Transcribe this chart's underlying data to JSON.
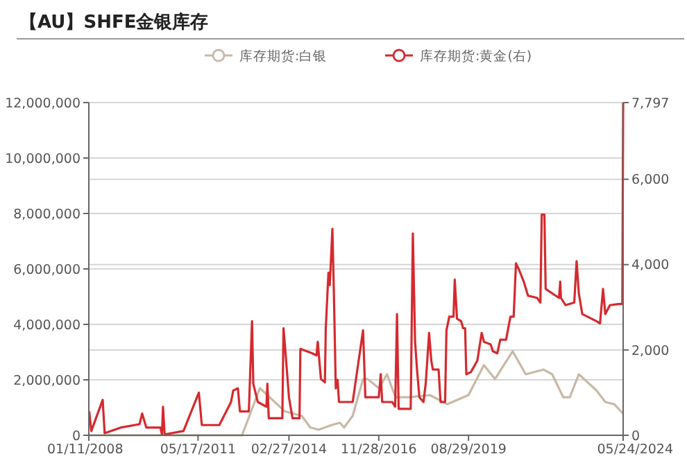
{
  "chart_data": {
    "type": "line",
    "title": "【AU】SHFE金银库存",
    "legend": "top",
    "grid": "y",
    "marker": "none",
    "xlim": [
      "2008-01-11",
      "2024-05-24"
    ],
    "xticks": [
      {
        "value": "2008-01-11",
        "label": "01/11/2008"
      },
      {
        "value": "2011-05-17",
        "label": "05/17/2011"
      },
      {
        "value": "2014-02-27",
        "label": "02/27/2014"
      },
      {
        "value": "2016-11-28",
        "label": "11/28/2016"
      },
      {
        "value": "2019-08-29",
        "label": "08/29/2019"
      },
      {
        "value": "2024-05-24",
        "label": "05/24/2024"
      }
    ],
    "ylim": [
      0,
      12000000
    ],
    "yticks": [
      0,
      {
        "value": 2000000,
        "label": "2,000,000"
      },
      {
        "value": 4000000,
        "label": "4,000,000"
      },
      {
        "value": 6000000,
        "label": "6,000,000"
      },
      {
        "value": 8000000,
        "label": "8,000,000"
      },
      {
        "value": 10000000,
        "label": "10,000,000"
      },
      {
        "value": 12000000,
        "label": "12,000,000"
      }
    ],
    "y2lim": [
      0,
      7797
    ],
    "y2ticks": [
      0,
      {
        "value": 2000,
        "label": "2,000"
      },
      {
        "value": 4000,
        "label": "4,000"
      },
      {
        "value": 6000,
        "label": "6,000"
      },
      {
        "value": 7797,
        "label": "7,797"
      }
    ],
    "series": [
      {
        "name": "库存期货:白银",
        "color": "#c8b9a6",
        "x": [
          "2008-01-11",
          "2012-09-20",
          "2013-04-08",
          "2014-01-08",
          "2014-07-20",
          "2014-10-24",
          "2015-01-26",
          "2015-06-18",
          "2015-09-20",
          "2015-11-06",
          "2016-02-10",
          "2016-06-05",
          "2016-07-26",
          "2016-11-28",
          "2017-02-28",
          "2017-06-03",
          "2017-10-26",
          "2018-06-24",
          "2019-01-01",
          "2019-08-29",
          "2020-02-17",
          "2020-06-20",
          "2021-01-04",
          "2021-05-30",
          "2021-12-14",
          "2022-03-22",
          "2022-07-24",
          "2022-10-05",
          "2023-01-14",
          "2023-07-30",
          "2023-11-06",
          "2024-02-14",
          "2024-05-24"
        ],
        "values": [
          0,
          0,
          1700000,
          870000,
          700000,
          280000,
          200000,
          370000,
          450000,
          280000,
          700000,
          2030000,
          2030000,
          1700000,
          2200000,
          1370000,
          1370000,
          1450000,
          1120000,
          1450000,
          2530000,
          2030000,
          3030000,
          2200000,
          2370000,
          2200000,
          1370000,
          1370000,
          2200000,
          1620000,
          1200000,
          1120000,
          780000
        ]
      },
      {
        "name": "库存期货:黄金(右)",
        "color": "#d42a2f",
        "axis": "y2",
        "x": [
          "2008-01-15",
          "2008-02-08",
          "2008-06-14",
          "2008-07-06",
          "2009-01-01",
          "2009-07-31",
          "2009-08-30",
          "2009-10-15",
          "2010-03-22",
          "2010-04-08",
          "2010-04-20",
          "2010-05-08",
          "2010-12-05",
          "2011-05-26",
          "2011-06-28",
          "2012-01-10",
          "2012-05-20",
          "2012-06-14",
          "2012-08-05",
          "2012-08-28",
          "2012-12-05",
          "2013-01-10",
          "2013-01-24",
          "2013-03-15",
          "2013-06-20",
          "2013-07-01",
          "2013-07-16",
          "2013-12-15",
          "2013-12-28",
          "2014-01-18",
          "2014-02-27",
          "2014-04-08",
          "2014-06-25",
          "2014-07-05",
          "2014-11-15",
          "2015-01-01",
          "2015-01-15",
          "2015-01-28",
          "2015-02-20",
          "2015-04-05",
          "2015-04-15",
          "2015-05-15",
          "2015-05-30",
          "2015-06-28",
          "2015-07-15",
          "2015-08-05",
          "2015-08-25",
          "2015-09-10",
          "2015-12-25",
          "2016-02-10",
          "2016-06-05",
          "2016-07-01",
          "2016-11-28",
          "2016-12-20",
          "2017-01-05",
          "2017-04-28",
          "2017-05-30",
          "2017-06-20",
          "2017-07-08",
          "2017-11-20",
          "2017-12-14",
          "2018-01-08",
          "2018-01-30",
          "2018-02-25",
          "2018-04-12",
          "2018-05-07",
          "2018-06-14",
          "2018-07-08",
          "2018-07-26",
          "2018-09-28",
          "2018-10-20",
          "2018-12-10",
          "2018-12-25",
          "2019-01-26",
          "2019-03-14",
          "2019-03-28",
          "2019-04-22",
          "2019-06-08",
          "2019-06-28",
          "2019-07-22",
          "2019-08-04",
          "2019-09-24",
          "2019-12-06",
          "2020-01-23",
          "2020-02-17",
          "2020-05-03",
          "2020-05-27",
          "2020-07-16",
          "2020-08-18",
          "2020-10-22",
          "2020-12-10",
          "2021-01-15",
          "2021-02-10",
          "2021-03-18",
          "2021-05-08",
          "2021-06-25",
          "2021-10-04",
          "2021-11-10",
          "2021-11-25",
          "2021-12-25",
          "2022-01-08",
          "2022-03-22",
          "2022-06-06",
          "2022-06-20",
          "2022-06-28",
          "2022-08-18",
          "2022-11-24",
          "2022-12-20",
          "2023-01-14",
          "2023-02-22",
          "2023-07-30",
          "2023-09-08",
          "2023-10-12",
          "2023-11-06",
          "2023-12-28",
          "2024-04-05",
          "2024-05-15",
          "2024-05-24"
        ],
        "values": [
          560,
          100,
          830,
          50,
          180,
          260,
          510,
          180,
          180,
          20,
          670,
          20,
          100,
          1000,
          240,
          240,
          780,
          1050,
          1100,
          560,
          560,
          2675,
          1210,
          780,
          670,
          1210,
          400,
          400,
          2510,
          1980,
          890,
          400,
          400,
          2025,
          1920,
          1870,
          2190,
          1870,
          1320,
          1240,
          2510,
          3810,
          3520,
          4840,
          3300,
          1100,
          1300,
          780,
          780,
          780,
          2460,
          890,
          890,
          1430,
          780,
          780,
          670,
          2840,
          620,
          620,
          4730,
          2190,
          1540,
          890,
          780,
          1210,
          2400,
          1750,
          1540,
          1540,
          780,
          780,
          2460,
          2780,
          2780,
          3650,
          2730,
          2675,
          2510,
          2510,
          1430,
          1480,
          1750,
          2400,
          2190,
          2130,
          1970,
          1920,
          2240,
          2240,
          2780,
          2780,
          4030,
          3870,
          3600,
          3270,
          3220,
          3110,
          5170,
          5170,
          3430,
          3325,
          3220,
          3600,
          3220,
          3050,
          3110,
          4080,
          3325,
          2840,
          2675,
          2620,
          3430,
          2840,
          3050,
          3075,
          3075,
          7797
        ]
      }
    ]
  }
}
